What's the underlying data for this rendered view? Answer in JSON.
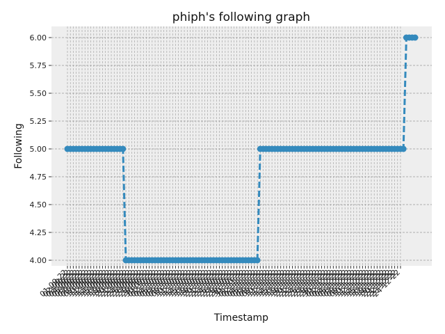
{
  "chart_data": {
    "type": "line",
    "title": "phiph's following graph",
    "xlabel": "Timestamp",
    "ylabel": "Following",
    "ylim": [
      3.95,
      6.1
    ],
    "yticks": [
      4.0,
      4.25,
      4.5,
      4.75,
      5.0,
      5.25,
      5.5,
      5.75,
      6.0
    ],
    "ytick_labels": [
      "4.00",
      "4.25",
      "4.50",
      "4.75",
      "5.00",
      "5.25",
      "5.50",
      "5.75",
      "6.00"
    ],
    "grid": true,
    "line_style": "dashed",
    "marker": "circle",
    "color": "#348ABD",
    "background": "#EEEEEE",
    "x_labels": [
      "01-09-22",
      "02-09-22",
      "03-09-22",
      "04-09-22",
      "05-09-22",
      "06-09-22",
      "07-09-22",
      "08-09-22",
      "09-09-22",
      "10-09-22",
      "11-09-22",
      "12-09-22",
      "13-09-22",
      "14-09-22",
      "15-09-22",
      "16-09-22",
      "17-09-22",
      "18-09-22",
      "19-09-22",
      "20-09-22",
      "21-09-22",
      "22-09-22",
      "23-09-22",
      "24-09-22",
      "25-09-22",
      "26-09-22",
      "27-09-22",
      "28-09-22",
      "29-09-22",
      "30-09-22",
      "01-10-22",
      "02-10-22",
      "03-10-22",
      "04-10-22",
      "05-10-22",
      "06-10-22",
      "07-10-22",
      "08-10-22",
      "09-10-22",
      "10-10-22",
      "11-10-22",
      "12-10-22",
      "13-10-22",
      "14-10-22",
      "15-10-22",
      "16-10-22",
      "17-10-22",
      "18-10-22",
      "19-10-22",
      "20-10-22",
      "21-10-22",
      "22-10-22",
      "23-10-22",
      "24-10-22",
      "25-10-22",
      "26-10-22",
      "27-10-22",
      "28-10-22",
      "29-10-22",
      "30-10-22",
      "31-10-22",
      "01-11-22",
      "02-11-22",
      "03-11-22",
      "04-11-22",
      "05-11-22",
      "06-11-22",
      "07-11-22",
      "08-11-22",
      "09-11-22",
      "10-11-22",
      "11-11-22",
      "12-11-22",
      "13-11-22",
      "14-11-22",
      "15-11-22",
      "16-11-22",
      "17-11-22",
      "18-11-22",
      "19-11-22",
      "20-11-22",
      "21-11-22",
      "22-11-22",
      "23-11-22",
      "24-11-22",
      "25-11-22",
      "26-11-22",
      "27-11-22",
      "28-11-22",
      "29-11-22",
      "30-11-22",
      "01-12-22",
      "02-12-22",
      "03-12-22",
      "04-12-22",
      "05-12-22",
      "06-12-22",
      "07-12-22",
      "08-12-22",
      "09-12-22",
      "10-12-22",
      "11-12-22",
      "12-12-22",
      "13-12-22",
      "14-12-22",
      "15-12-22",
      "16-12-22",
      "17-12-22",
      "18-12-22",
      "19-12-22",
      "20-12-22",
      "21-12-22",
      "22-12-22",
      "23-12-22",
      "24-12-22"
    ],
    "values": [
      5,
      5,
      5,
      5,
      5,
      5,
      5,
      5,
      5,
      5,
      5,
      5,
      5,
      5,
      5,
      5,
      5,
      5,
      5,
      5,
      4,
      4,
      4,
      4,
      4,
      4,
      4,
      4,
      4,
      4,
      4,
      4,
      4,
      4,
      4,
      4,
      4,
      4,
      4,
      4,
      4,
      4,
      4,
      4,
      4,
      4,
      4,
      4,
      4,
      4,
      4,
      4,
      4,
      4,
      4,
      4,
      4,
      4,
      4,
      4,
      4,
      4,
      4,
      4,
      4,
      4,
      5,
      5,
      5,
      5,
      5,
      5,
      5,
      5,
      5,
      5,
      5,
      5,
      5,
      5,
      5,
      5,
      5,
      5,
      5,
      5,
      5,
      5,
      5,
      5,
      5,
      5,
      5,
      5,
      5,
      5,
      5,
      5,
      5,
      5,
      5,
      5,
      5,
      5,
      5,
      5,
      5,
      5,
      5,
      5,
      5,
      5,
      5,
      5,
      5,
      5,
      6,
      6,
      6,
      6
    ]
  }
}
